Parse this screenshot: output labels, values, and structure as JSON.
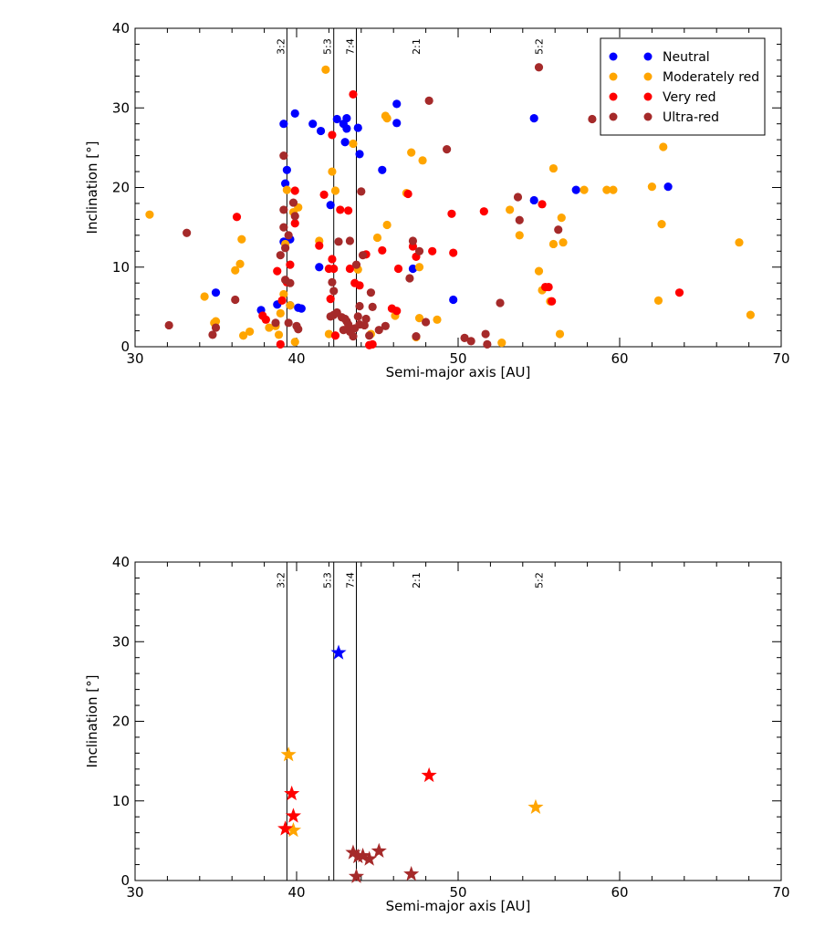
{
  "chart_data": [
    {
      "type": "scatter",
      "marker": "circle",
      "xlabel": "Semi-major axis [AU]",
      "ylabel": "Inclination [°]",
      "xlim": [
        30,
        70
      ],
      "ylim": [
        0,
        40
      ],
      "xticks": [
        30,
        40,
        50,
        60,
        70
      ],
      "yticks": [
        0,
        10,
        20,
        30,
        40
      ],
      "grid": false,
      "legend_position": "top-right",
      "resonances": [
        {
          "label": "3:2",
          "a": 39.4,
          "line": true
        },
        {
          "label": "5:3",
          "a": 42.3,
          "line": true
        },
        {
          "label": "7:4",
          "a": 43.7,
          "line": true
        },
        {
          "label": "2:1",
          "a": 47.8,
          "line": false
        },
        {
          "label": "5:2",
          "a": 55.4,
          "line": false
        }
      ],
      "series": [
        {
          "name": "Neutral",
          "color": "#0000ff",
          "points": [
            [
              35.0,
              6.8
            ],
            [
              37.8,
              4.6
            ],
            [
              38.8,
              5.3
            ],
            [
              39.2,
              28.0
            ],
            [
              39.2,
              13.2
            ],
            [
              39.3,
              20.5
            ],
            [
              39.4,
              22.2
            ],
            [
              39.6,
              13.5
            ],
            [
              39.6,
              5.2
            ],
            [
              39.9,
              29.3
            ],
            [
              40.1,
              4.9
            ],
            [
              40.3,
              4.8
            ],
            [
              41.0,
              28.0
            ],
            [
              41.4,
              10.0
            ],
            [
              41.5,
              27.1
            ],
            [
              42.1,
              17.8
            ],
            [
              42.5,
              28.6
            ],
            [
              42.9,
              28.0
            ],
            [
              43.0,
              25.7
            ],
            [
              43.1,
              27.4
            ],
            [
              43.1,
              28.7
            ],
            [
              43.8,
              27.5
            ],
            [
              43.9,
              24.2
            ],
            [
              45.3,
              22.2
            ],
            [
              46.2,
              30.5
            ],
            [
              46.2,
              28.1
            ],
            [
              47.2,
              9.8
            ],
            [
              49.7,
              5.9
            ],
            [
              54.7,
              28.7
            ],
            [
              54.7,
              18.4
            ],
            [
              57.3,
              19.7
            ],
            [
              63.0,
              20.1
            ]
          ]
        },
        {
          "name": "Moderately red",
          "color": "#ffa500",
          "points": [
            [
              30.9,
              16.6
            ],
            [
              34.3,
              6.3
            ],
            [
              34.9,
              3.0
            ],
            [
              35.0,
              3.2
            ],
            [
              36.2,
              9.6
            ],
            [
              36.5,
              10.4
            ],
            [
              36.6,
              13.5
            ],
            [
              36.7,
              1.4
            ],
            [
              37.1,
              1.9
            ],
            [
              38.3,
              2.4
            ],
            [
              38.7,
              2.6
            ],
            [
              38.9,
              1.5
            ],
            [
              39.0,
              4.2
            ],
            [
              39.2,
              6.6
            ],
            [
              39.3,
              12.9
            ],
            [
              39.4,
              19.7
            ],
            [
              39.6,
              5.2
            ],
            [
              39.8,
              16.9
            ],
            [
              39.9,
              0.6
            ],
            [
              40.1,
              17.5
            ],
            [
              41.4,
              13.3
            ],
            [
              41.8,
              34.8
            ],
            [
              42.0,
              1.6
            ],
            [
              42.2,
              22.0
            ],
            [
              42.4,
              19.6
            ],
            [
              43.5,
              25.5
            ],
            [
              43.8,
              9.7
            ],
            [
              44.6,
              1.6
            ],
            [
              45.0,
              13.7
            ],
            [
              45.5,
              29.0
            ],
            [
              45.6,
              28.7
            ],
            [
              45.6,
              15.3
            ],
            [
              46.1,
              3.9
            ],
            [
              46.8,
              19.3
            ],
            [
              47.1,
              24.4
            ],
            [
              47.4,
              1.2
            ],
            [
              47.6,
              10.0
            ],
            [
              47.6,
              3.6
            ],
            [
              47.8,
              23.4
            ],
            [
              48.7,
              3.4
            ],
            [
              52.7,
              0.5
            ],
            [
              53.2,
              17.2
            ],
            [
              53.8,
              14.0
            ],
            [
              55.0,
              9.5
            ],
            [
              55.2,
              7.1
            ],
            [
              55.7,
              5.7
            ],
            [
              55.9,
              22.4
            ],
            [
              55.9,
              12.9
            ],
            [
              56.3,
              1.6
            ],
            [
              56.4,
              16.2
            ],
            [
              56.5,
              13.1
            ],
            [
              57.8,
              19.7
            ],
            [
              59.2,
              19.7
            ],
            [
              59.6,
              19.7
            ],
            [
              62.0,
              20.1
            ],
            [
              62.4,
              5.8
            ],
            [
              62.6,
              15.4
            ],
            [
              62.7,
              25.1
            ],
            [
              67.4,
              13.1
            ],
            [
              68.1,
              4.0
            ]
          ]
        },
        {
          "name": "Very red",
          "color": "#ff0000",
          "points": [
            [
              36.3,
              16.3
            ],
            [
              37.9,
              3.9
            ],
            [
              38.1,
              3.4
            ],
            [
              38.8,
              9.5
            ],
            [
              39.0,
              0.3
            ],
            [
              39.1,
              5.8
            ],
            [
              39.4,
              8.1
            ],
            [
              39.6,
              10.3
            ],
            [
              39.9,
              19.6
            ],
            [
              39.9,
              15.5
            ],
            [
              41.4,
              12.7
            ],
            [
              41.7,
              19.1
            ],
            [
              42.0,
              9.8
            ],
            [
              42.1,
              6.0
            ],
            [
              42.2,
              11.0
            ],
            [
              42.2,
              26.6
            ],
            [
              42.3,
              9.8
            ],
            [
              42.4,
              1.4
            ],
            [
              42.7,
              17.2
            ],
            [
              43.2,
              17.1
            ],
            [
              43.3,
              9.8
            ],
            [
              43.5,
              31.7
            ],
            [
              43.6,
              8.0
            ],
            [
              43.9,
              7.7
            ],
            [
              44.3,
              11.6
            ],
            [
              44.5,
              0.2
            ],
            [
              44.7,
              0.3
            ],
            [
              45.3,
              12.1
            ],
            [
              45.9,
              4.8
            ],
            [
              46.2,
              4.5
            ],
            [
              46.3,
              9.8
            ],
            [
              46.9,
              19.2
            ],
            [
              47.2,
              12.6
            ],
            [
              47.4,
              11.3
            ],
            [
              48.4,
              12.0
            ],
            [
              49.6,
              16.7
            ],
            [
              49.7,
              11.8
            ],
            [
              51.6,
              17.0
            ],
            [
              55.2,
              17.9
            ],
            [
              55.4,
              7.5
            ],
            [
              55.6,
              7.5
            ],
            [
              55.8,
              5.7
            ],
            [
              63.7,
              6.8
            ]
          ]
        },
        {
          "name": "Ultra-red",
          "color": "#a52a2a",
          "points": [
            [
              32.1,
              2.7
            ],
            [
              33.2,
              14.3
            ],
            [
              34.8,
              1.5
            ],
            [
              35.0,
              2.4
            ],
            [
              36.2,
              5.9
            ],
            [
              38.7,
              3.0
            ],
            [
              39.0,
              11.5
            ],
            [
              39.2,
              24.0
            ],
            [
              39.2,
              17.2
            ],
            [
              39.2,
              15.0
            ],
            [
              39.3,
              12.4
            ],
            [
              39.3,
              8.4
            ],
            [
              39.5,
              14.0
            ],
            [
              39.5,
              3.0
            ],
            [
              39.6,
              8.0
            ],
            [
              39.8,
              18.1
            ],
            [
              39.9,
              16.4
            ],
            [
              40.0,
              2.6
            ],
            [
              40.1,
              2.2
            ],
            [
              42.1,
              3.8
            ],
            [
              42.2,
              8.1
            ],
            [
              42.3,
              7.0
            ],
            [
              42.3,
              4.0
            ],
            [
              42.5,
              4.3
            ],
            [
              42.6,
              13.2
            ],
            [
              42.8,
              3.7
            ],
            [
              42.9,
              2.1
            ],
            [
              43.0,
              3.5
            ],
            [
              43.1,
              3.2
            ],
            [
              43.2,
              2.8
            ],
            [
              43.3,
              1.9
            ],
            [
              43.3,
              13.3
            ],
            [
              43.5,
              1.3
            ],
            [
              43.6,
              2.3
            ],
            [
              43.7,
              10.3
            ],
            [
              43.8,
              3.8
            ],
            [
              43.9,
              2.8
            ],
            [
              43.9,
              5.1
            ],
            [
              44.0,
              19.5
            ],
            [
              44.1,
              11.5
            ],
            [
              44.2,
              2.7
            ],
            [
              44.3,
              3.5
            ],
            [
              44.5,
              1.4
            ],
            [
              44.6,
              6.8
            ],
            [
              44.7,
              5.0
            ],
            [
              45.1,
              2.1
            ],
            [
              45.5,
              2.6
            ],
            [
              47.0,
              8.6
            ],
            [
              47.2,
              13.3
            ],
            [
              47.4,
              1.3
            ],
            [
              47.6,
              12.0
            ],
            [
              48.0,
              3.1
            ],
            [
              48.2,
              30.9
            ],
            [
              49.3,
              24.8
            ],
            [
              50.4,
              1.1
            ],
            [
              50.8,
              0.7
            ],
            [
              51.7,
              1.6
            ],
            [
              51.8,
              0.3
            ],
            [
              52.6,
              5.5
            ],
            [
              53.7,
              18.8
            ],
            [
              53.8,
              15.9
            ],
            [
              55.0,
              35.1
            ],
            [
              56.2,
              14.7
            ],
            [
              58.3,
              28.6
            ]
          ]
        }
      ]
    },
    {
      "type": "scatter",
      "marker": "star",
      "xlabel": "Semi-major axis [AU]",
      "ylabel": "Inclination [°]",
      "xlim": [
        30,
        70
      ],
      "ylim": [
        0,
        40
      ],
      "xticks": [
        30,
        40,
        50,
        60,
        70
      ],
      "yticks": [
        0,
        10,
        20,
        30,
        40
      ],
      "grid": false,
      "resonances": [
        {
          "label": "3:2",
          "a": 39.4,
          "line": true
        },
        {
          "label": "5:3",
          "a": 42.3,
          "line": true
        },
        {
          "label": "7:4",
          "a": 43.7,
          "line": true
        },
        {
          "label": "2:1",
          "a": 47.8,
          "line": false
        },
        {
          "label": "5:2",
          "a": 55.4,
          "line": false
        }
      ],
      "series": [
        {
          "color": "#0000ff",
          "points": [
            [
              42.6,
              28.6
            ]
          ]
        },
        {
          "color": "#ffa500",
          "points": [
            [
              39.5,
              15.8
            ],
            [
              39.8,
              6.3
            ],
            [
              54.8,
              9.2
            ]
          ]
        },
        {
          "color": "#ff0000",
          "points": [
            [
              39.3,
              6.5
            ],
            [
              39.7,
              10.9
            ],
            [
              39.8,
              8.1
            ],
            [
              48.2,
              13.2
            ]
          ]
        },
        {
          "color": "#a52a2a",
          "points": [
            [
              43.5,
              3.5
            ],
            [
              43.7,
              0.5
            ],
            [
              43.8,
              3.0
            ],
            [
              44.1,
              3.1
            ],
            [
              44.5,
              2.7
            ],
            [
              45.1,
              3.7
            ],
            [
              47.1,
              0.8
            ]
          ]
        }
      ]
    }
  ]
}
